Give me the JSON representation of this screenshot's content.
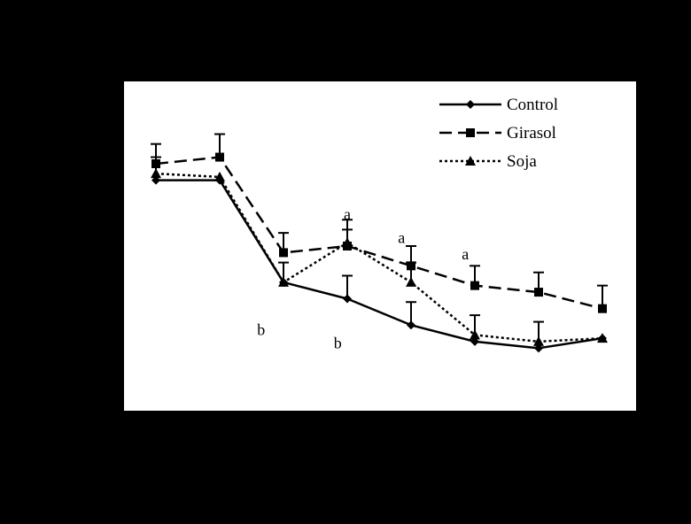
{
  "chart_data": {
    "type": "line",
    "title": "",
    "xlabel": "",
    "ylabel": "",
    "legend_position": "top-right",
    "x": [
      1,
      2,
      3,
      4,
      5,
      6,
      7,
      8
    ],
    "ylim": [
      0,
      100
    ],
    "grid": false,
    "series": [
      {
        "name": "Control",
        "line_style": "solid",
        "marker": "diamond",
        "values": [
          70,
          70,
          39,
          34,
          26,
          21,
          19,
          22
        ],
        "errors": [
          0,
          0,
          0,
          7,
          7,
          0,
          0,
          0
        ]
      },
      {
        "name": "Girasol",
        "line_style": "dashed",
        "marker": "square",
        "values": [
          75,
          77,
          48,
          50,
          44,
          38,
          36,
          31
        ],
        "errors": [
          6,
          7,
          6,
          5,
          6,
          6,
          6,
          7
        ]
      },
      {
        "name": "Soja",
        "line_style": "dotted",
        "marker": "triangle",
        "values": [
          72,
          71,
          39,
          51,
          39,
          23,
          21,
          22
        ],
        "errors": [
          5,
          0,
          6,
          7,
          6,
          6,
          6,
          0
        ]
      }
    ],
    "annotations": [
      {
        "text": "a",
        "x": 4.0,
        "y": 58
      },
      {
        "text": "a",
        "x": 4.85,
        "y": 51
      },
      {
        "text": "a",
        "x": 5.85,
        "y": 46
      },
      {
        "text": "b",
        "x": 2.65,
        "y": 23
      },
      {
        "text": "b",
        "x": 3.85,
        "y": 19
      }
    ]
  }
}
